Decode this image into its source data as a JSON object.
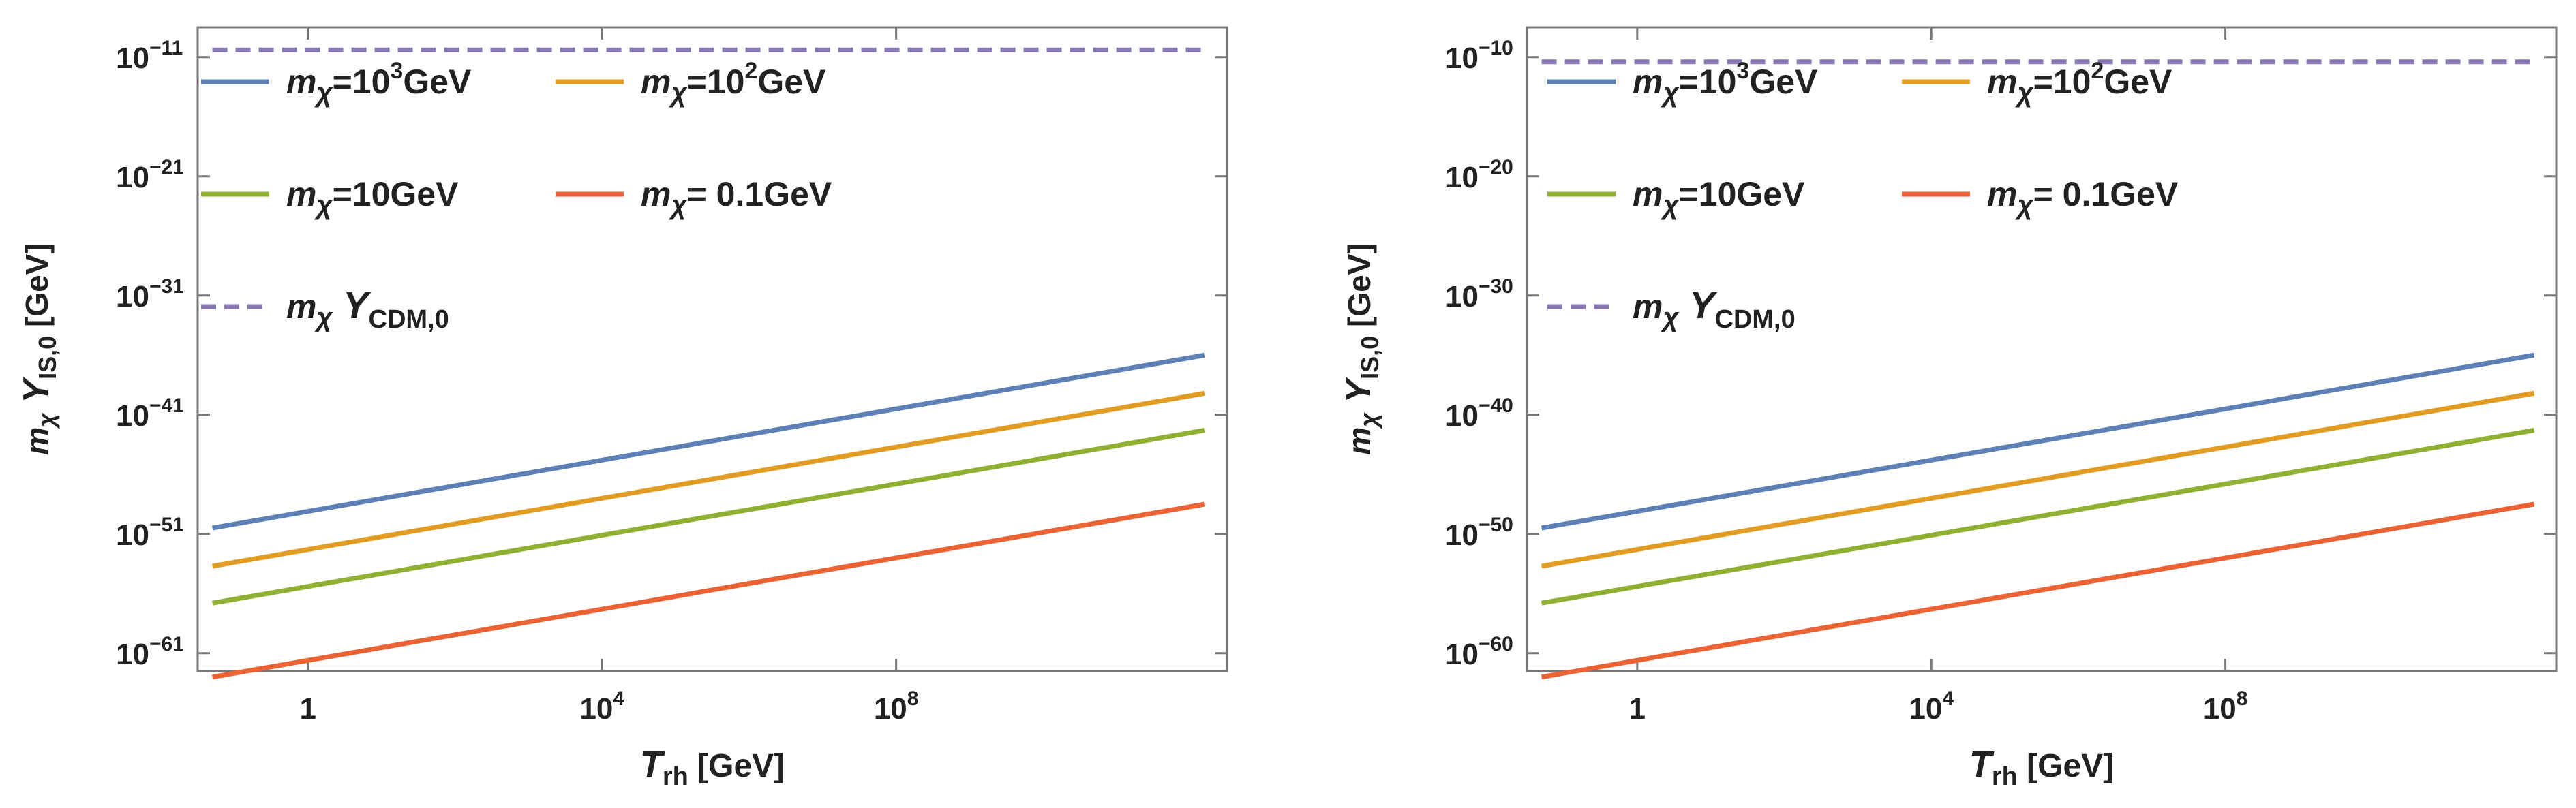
{
  "chart_data": [
    {
      "type": "line",
      "xscale": "log10",
      "yscale": "log10",
      "xlim_log10": [
        -1.5,
        12.5
      ],
      "ylim_log10": [
        -62.5,
        -8.5
      ],
      "xticks": [
        {
          "log10": 0,
          "base": "1",
          "exp": ""
        },
        {
          "log10": 4,
          "base": "10",
          "exp": "4"
        },
        {
          "log10": 8,
          "base": "10",
          "exp": "8"
        }
      ],
      "yticks": [
        {
          "log10": -11,
          "base": "10",
          "exp": "−11"
        },
        {
          "log10": -21,
          "base": "10",
          "exp": "−21"
        },
        {
          "log10": -31,
          "base": "10",
          "exp": "−31"
        },
        {
          "log10": -41,
          "base": "10",
          "exp": "−41"
        },
        {
          "log10": -51,
          "base": "10",
          "exp": "−51"
        },
        {
          "log10": -61,
          "base": "10",
          "exp": "−61"
        }
      ],
      "xlabel": {
        "main": "T",
        "sub": "rh",
        "unit": "[GeV]"
      },
      "ylabel": {
        "m": "m",
        "chi": "χ",
        "Y": "Y",
        "sub": "IS,0",
        "unit": "[GeV]"
      },
      "series": [
        {
          "name": "m_chi=10^3 GeV",
          "color": "#5e81b5",
          "dashed": false,
          "x_log10": [
            -1.3,
            12.2
          ],
          "y_log10": [
            -50.5,
            -36.0
          ]
        },
        {
          "name": "m_chi=10^2 GeV",
          "color": "#e19c24",
          "dashed": false,
          "x_log10": [
            -1.3,
            12.2
          ],
          "y_log10": [
            -53.7,
            -39.2
          ]
        },
        {
          "name": "m_chi=10 GeV",
          "color": "#8fb032",
          "dashed": false,
          "x_log10": [
            -1.3,
            12.2
          ],
          "y_log10": [
            -56.8,
            -42.3
          ]
        },
        {
          "name": "m_chi=0.1 GeV",
          "color": "#eb6235",
          "dashed": false,
          "x_log10": [
            -1.3,
            12.2
          ],
          "y_log10": [
            -63.0,
            -48.5
          ]
        },
        {
          "name": "m_chi Y_CDM,0",
          "color": "#8778b3",
          "dashed": true,
          "x_log10": [
            -1.3,
            12.2
          ],
          "y_log10": [
            -10.4,
            -10.4
          ]
        }
      ],
      "legend": {
        "placement": "upper-left",
        "entries": [
          {
            "color": "#5e81b5",
            "dashed": false,
            "v": "=10",
            "sup": "3",
            "unit": "GeV"
          },
          {
            "color": "#e19c24",
            "dashed": false,
            "v": "=10",
            "sup": "2",
            "unit": "GeV"
          },
          {
            "color": "#8fb032",
            "dashed": false,
            "v": "=10",
            "sup": "",
            "unit": "GeV"
          },
          {
            "color": "#eb6235",
            "dashed": false,
            "v": "= 0.1",
            "sup": "",
            "unit": "GeV"
          },
          {
            "color": "#8778b3",
            "dashed": true,
            "cdm": true,
            "Ysub": "CDM,0"
          }
        ]
      }
    },
    {
      "type": "line",
      "xscale": "log10",
      "yscale": "log10",
      "xlim_log10": [
        -1.5,
        12.5
      ],
      "ylim_log10": [
        -61.5,
        -7.5
      ],
      "xticks": [
        {
          "log10": 0,
          "base": "1",
          "exp": ""
        },
        {
          "log10": 4,
          "base": "10",
          "exp": "4"
        },
        {
          "log10": 8,
          "base": "10",
          "exp": "8"
        }
      ],
      "yticks": [
        {
          "log10": -10,
          "base": "10",
          "exp": "−10"
        },
        {
          "log10": -20,
          "base": "10",
          "exp": "−20"
        },
        {
          "log10": -30,
          "base": "10",
          "exp": "−30"
        },
        {
          "log10": -40,
          "base": "10",
          "exp": "−40"
        },
        {
          "log10": -50,
          "base": "10",
          "exp": "−50"
        },
        {
          "log10": -60,
          "base": "10",
          "exp": "−60"
        }
      ],
      "xlabel": {
        "main": "T",
        "sub": "rh",
        "unit": "[GeV]"
      },
      "ylabel": {
        "m": "m",
        "chi": "χ",
        "Y": "Y",
        "sub": "IS,0",
        "unit": "[GeV]"
      },
      "series": [
        {
          "name": "m_chi=10^3 GeV",
          "color": "#5e81b5",
          "dashed": false,
          "x_log10": [
            -1.3,
            12.2
          ],
          "y_log10": [
            -49.5,
            -35.0
          ]
        },
        {
          "name": "m_chi=10^2 GeV",
          "color": "#e19c24",
          "dashed": false,
          "x_log10": [
            -1.3,
            12.2
          ],
          "y_log10": [
            -52.7,
            -38.2
          ]
        },
        {
          "name": "m_chi=10 GeV",
          "color": "#8fb032",
          "dashed": false,
          "x_log10": [
            -1.3,
            12.2
          ],
          "y_log10": [
            -55.8,
            -41.3
          ]
        },
        {
          "name": "m_chi=0.1 GeV",
          "color": "#eb6235",
          "dashed": false,
          "x_log10": [
            -1.3,
            12.2
          ],
          "y_log10": [
            -62.0,
            -47.5
          ]
        },
        {
          "name": "m_chi Y_CDM,0",
          "color": "#8778b3",
          "dashed": true,
          "x_log10": [
            -1.3,
            12.2
          ],
          "y_log10": [
            -10.4,
            -10.4
          ]
        }
      ],
      "legend": {
        "placement": "upper-left",
        "entries": [
          {
            "color": "#5e81b5",
            "dashed": false,
            "v": "=10",
            "sup": "3",
            "unit": "GeV"
          },
          {
            "color": "#e19c24",
            "dashed": false,
            "v": "=10",
            "sup": "2",
            "unit": "GeV"
          },
          {
            "color": "#8fb032",
            "dashed": false,
            "v": "=10",
            "sup": "",
            "unit": "GeV"
          },
          {
            "color": "#eb6235",
            "dashed": false,
            "v": "= 0.1",
            "sup": "",
            "unit": "GeV"
          },
          {
            "color": "#8778b3",
            "dashed": true,
            "cdm": true,
            "Ysub": "CDM,0"
          }
        ]
      }
    }
  ]
}
